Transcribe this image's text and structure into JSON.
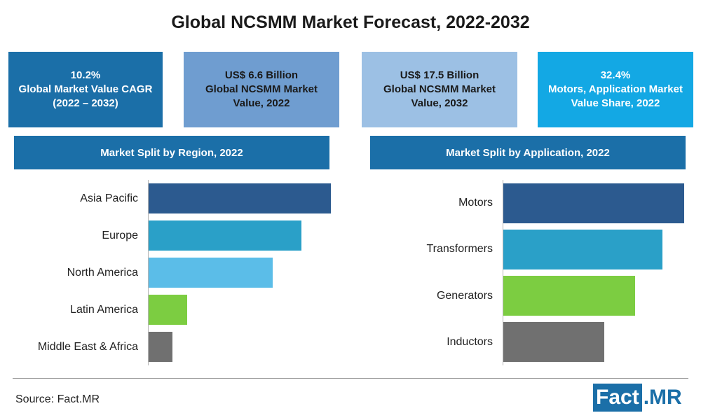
{
  "title": "Global NCSMM Market Forecast, 2022-2032",
  "stats": [
    {
      "lines": [
        "10.2%",
        "Global Market Value CAGR",
        "(2022 – 2032)"
      ],
      "color": "#1b6fa8",
      "text": "light"
    },
    {
      "lines": [
        "US$ 6.6 Billion",
        "Global NCSMM Market",
        "Value, 2022"
      ],
      "color": "#6f9dd0",
      "text": "dark"
    },
    {
      "lines": [
        "US$ 17.5 Billion",
        "Global NCSMM Market",
        "Value, 2032"
      ],
      "color": "#9cc0e4",
      "text": "dark"
    },
    {
      "lines": [
        "32.4%",
        "Motors, Application Market",
        "Value Share, 2022"
      ],
      "color": "#13a8e4",
      "text": "light"
    }
  ],
  "region_header": "Market Split by Region, 2022",
  "application_header": "Market Split by Application, 2022",
  "header_color": "#1b6fa8",
  "chart_data": [
    {
      "type": "bar",
      "orientation": "horizontal",
      "title": "Market Split by Region, 2022",
      "categories": [
        "Asia Pacific",
        "Europe",
        "North America",
        "Latin America",
        "Middle East & Africa"
      ],
      "values": [
        100,
        84,
        68,
        21,
        13
      ],
      "colors": [
        "#2c5a8f",
        "#2aa0c8",
        "#5bbde8",
        "#7ccd41",
        "#707070"
      ],
      "value_scale": "relative (no axis printed)"
    },
    {
      "type": "bar",
      "orientation": "horizontal",
      "title": "Market Split by Application, 2022",
      "categories": [
        "Motors",
        "Transformers",
        "Generators",
        "Inductors"
      ],
      "values": [
        100,
        88,
        73,
        56
      ],
      "colors": [
        "#2c5a8f",
        "#2aa0c8",
        "#7ccd41",
        "#707070"
      ],
      "value_scale": "relative (no axis printed)"
    }
  ],
  "source": "Source: Fact.MR",
  "logo": {
    "part1": "Fact",
    "part2": ".MR"
  }
}
